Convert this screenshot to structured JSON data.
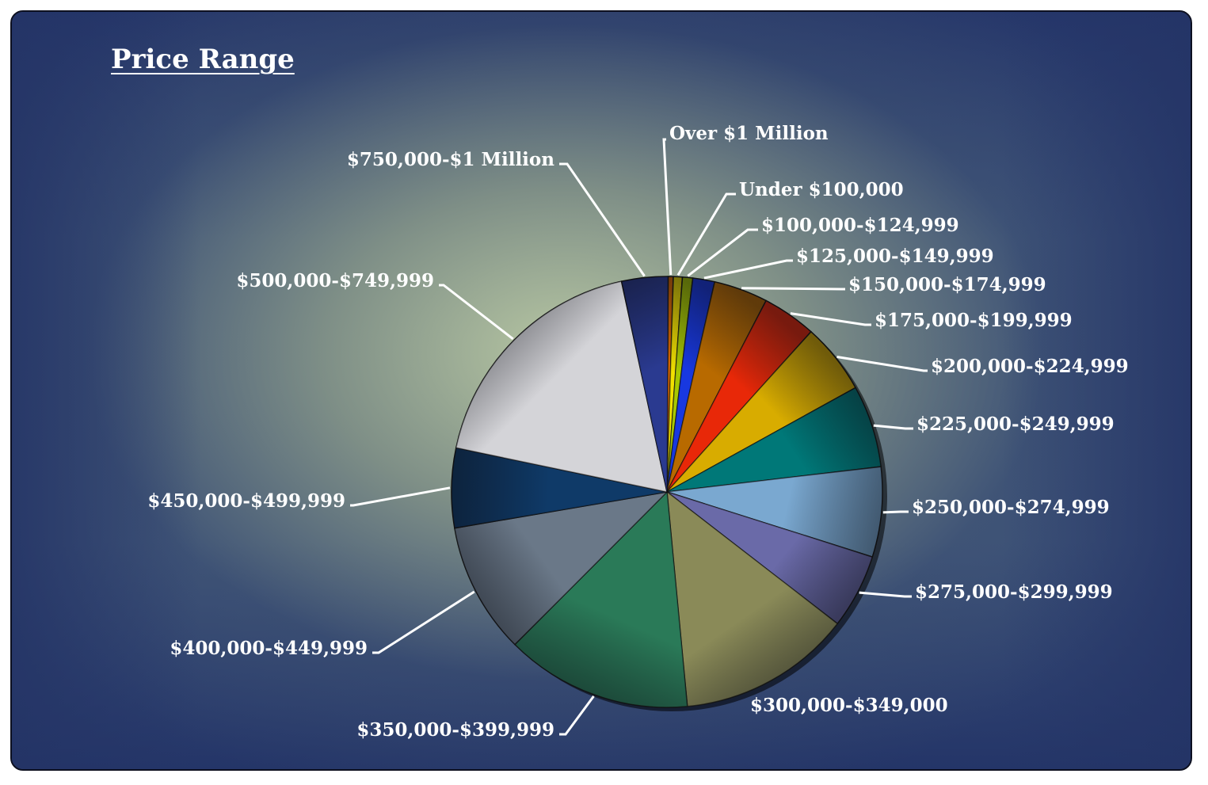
{
  "chart_data": {
    "type": "pie",
    "title": "Price Range",
    "categories": [
      "Over $1 Million",
      "Under $100,000",
      "$100,000-$124,999",
      "$125,000-$149,999",
      "$150,000-$174,999",
      "$175,000-$199,999",
      "$200,000-$224,999",
      "$225,000-$249,999",
      "$250,000-$274,999",
      "$275,000-$299,999",
      "$300,000-$349,000",
      "$350,000-$399,999",
      "$400,000-$449,999",
      "$450,000-$499,999",
      "$500,000-$749,999",
      "$750,000-$1 Million"
    ],
    "values": [
      0.4,
      0.7,
      0.8,
      1.7,
      4.2,
      4.2,
      5.5,
      6.4,
      7.0,
      5.8,
      13.5,
      14.5,
      10.2,
      6.2,
      19.0,
      3.6
    ],
    "colors": [
      "#e06a00",
      "#f2e000",
      "#a8c800",
      "#1838e0",
      "#b86a00",
      "#e82808",
      "#d8ac00",
      "#007878",
      "#7aa8d0",
      "#6a6aa8",
      "#8a8a58",
      "#2a7a58",
      "#6a7888",
      "#0f3a68",
      "#d4d4d8",
      "#2a3a90"
    ],
    "slices_order_note_removed": null
  },
  "legend_position": "leader-line labels around pie"
}
